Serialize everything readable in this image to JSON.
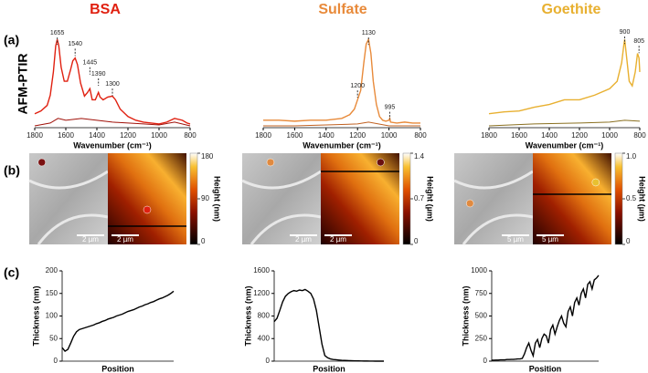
{
  "columns": [
    "BSA",
    "Sulfate",
    "Goethite"
  ],
  "column_colors": [
    "#e02010",
    "#e88a3a",
    "#e8b030"
  ],
  "panel_labels": [
    "(a)",
    "(b)",
    "(c)"
  ],
  "row_label": "AFM-PTIR",
  "images": [
    {
      "colorbar": {
        "label": "Height (nm)",
        "range": [
          0,
          180
        ],
        "ticks": [
          0,
          90,
          180
        ]
      },
      "scale_bars": [
        "2 µm",
        "2 µm"
      ]
    },
    {
      "colorbar": {
        "label": "Height (µm)",
        "range": [
          0,
          1.4
        ],
        "ticks": [
          0,
          0.7,
          1.4
        ]
      },
      "scale_bars": [
        "2 µm",
        "2 µm"
      ]
    },
    {
      "colorbar": {
        "label": "Height (µm)",
        "range": [
          0,
          1
        ],
        "ticks": [
          0,
          0.5,
          {
            "value": 1,
            "label": "1.0"
          }
        ]
      },
      "scale_bars": [
        "5 µm",
        "5 µm"
      ]
    }
  ],
  "chart_data": [
    {
      "type": "line",
      "xlabel": "Wavenumber (cm⁻¹)",
      "xlim": [
        1800,
        800
      ],
      "xticks": [
        1800,
        1600,
        1400,
        1200,
        1000,
        800
      ],
      "ylim": [
        0,
        1.1
      ],
      "series": [
        {
          "color": "#e02010",
          "x": [
            1800,
            1760,
            1720,
            1700,
            1680,
            1665,
            1655,
            1645,
            1630,
            1610,
            1590,
            1570,
            1555,
            1540,
            1525,
            1505,
            1480,
            1460,
            1445,
            1430,
            1410,
            1395,
            1390,
            1380,
            1360,
            1330,
            1300,
            1280,
            1250,
            1200,
            1150,
            1100,
            1050,
            1000,
            950,
            900,
            850,
            820,
            800
          ],
          "values": [
            0.15,
            0.18,
            0.24,
            0.35,
            0.6,
            0.88,
            0.95,
            0.88,
            0.65,
            0.5,
            0.5,
            0.62,
            0.72,
            0.75,
            0.68,
            0.48,
            0.34,
            0.38,
            0.42,
            0.3,
            0.3,
            0.36,
            0.38,
            0.33,
            0.3,
            0.33,
            0.34,
            0.3,
            0.2,
            0.12,
            0.08,
            0.06,
            0.05,
            0.04,
            0.06,
            0.1,
            0.08,
            0.05,
            0.04
          ]
        },
        {
          "color": "#a01008",
          "x": [
            1800,
            1700,
            1650,
            1600,
            1500,
            1400,
            1300,
            1200,
            1100,
            1000,
            900,
            800
          ],
          "values": [
            0.02,
            0.05,
            0.1,
            0.08,
            0.1,
            0.08,
            0.06,
            0.05,
            0.04,
            0.03,
            0.06,
            0.02
          ]
        }
      ],
      "annotations": [
        {
          "x": 1655,
          "y": 1.02,
          "label": "1655"
        },
        {
          "x": 1540,
          "y": 0.9,
          "label": "1540"
        },
        {
          "x": 1445,
          "y": 0.7,
          "label": "1445"
        },
        {
          "x": 1390,
          "y": 0.58,
          "label": "1390"
        },
        {
          "x": 1300,
          "y": 0.47,
          "label": "1300"
        }
      ]
    },
    {
      "type": "line",
      "xlabel": "Wavenumber (cm⁻¹)",
      "xlim": [
        1800,
        800
      ],
      "xticks": [
        1800,
        1600,
        1400,
        1200,
        1000,
        800
      ],
      "ylim": [
        0,
        1.1
      ],
      "series": [
        {
          "color": "#e88a3a",
          "x": [
            1800,
            1700,
            1600,
            1500,
            1400,
            1300,
            1250,
            1220,
            1200,
            1180,
            1160,
            1145,
            1130,
            1115,
            1100,
            1080,
            1060,
            1040,
            1020,
            1000,
            995,
            990,
            950,
            900,
            850,
            800
          ],
          "values": [
            0.08,
            0.08,
            0.07,
            0.08,
            0.08,
            0.1,
            0.14,
            0.2,
            0.3,
            0.4,
            0.7,
            0.9,
            0.95,
            0.8,
            0.5,
            0.25,
            0.12,
            0.08,
            0.07,
            0.08,
            0.1,
            0.06,
            0.05,
            0.06,
            0.05,
            0.05
          ]
        },
        {
          "color": "#c06020",
          "x": [
            1800,
            1600,
            1400,
            1200,
            1130,
            1000,
            800
          ],
          "values": [
            0.02,
            0.02,
            0.03,
            0.04,
            0.06,
            0.02,
            0.02
          ]
        }
      ],
      "annotations": [
        {
          "x": 1130,
          "y": 1.02,
          "label": "1130"
        },
        {
          "x": 1200,
          "y": 0.45,
          "label": "1200"
        },
        {
          "x": 995,
          "y": 0.22,
          "label": "995"
        }
      ]
    },
    {
      "type": "line",
      "xlabel": "Wavenumber (cm⁻¹)",
      "xlim": [
        1800,
        800
      ],
      "xticks": [
        1800,
        1600,
        1400,
        1200,
        1000,
        800
      ],
      "ylim": [
        0,
        1.1
      ],
      "series": [
        {
          "color": "#e8b030",
          "x": [
            1800,
            1700,
            1600,
            1500,
            1400,
            1300,
            1200,
            1100,
            1000,
            950,
            920,
            905,
            900,
            890,
            870,
            850,
            830,
            815,
            805,
            800
          ],
          "values": [
            0.15,
            0.17,
            0.18,
            0.22,
            0.25,
            0.3,
            0.3,
            0.35,
            0.42,
            0.5,
            0.7,
            0.9,
            0.95,
            0.8,
            0.5,
            0.45,
            0.6,
            0.8,
            0.75,
            0.6
          ]
        },
        {
          "color": "#8a7020",
          "x": [
            1800,
            1500,
            1200,
            1000,
            900,
            800
          ],
          "values": [
            0.02,
            0.04,
            0.05,
            0.06,
            0.08,
            0.07
          ]
        }
      ],
      "annotations": [
        {
          "x": 900,
          "y": 1.03,
          "label": "900"
        },
        {
          "x": 805,
          "y": 0.93,
          "label": "805"
        }
      ]
    },
    {
      "type": "line",
      "xlabel": "Position",
      "ylabel": "Thickness (nm)",
      "ylim": [
        0,
        200
      ],
      "yticks": [
        0,
        50,
        100,
        150,
        200
      ],
      "series": [
        {
          "color": "#000000",
          "values": [
            30,
            22,
            26,
            40,
            55,
            65,
            70,
            72,
            74,
            76,
            78,
            80,
            83,
            85,
            88,
            90,
            93,
            95,
            97,
            100,
            102,
            104,
            107,
            110,
            112,
            114,
            117,
            120,
            122,
            125,
            127,
            130,
            132,
            135,
            138,
            140,
            143,
            146,
            150,
            155
          ]
        }
      ]
    },
    {
      "type": "line",
      "xlabel": "Position",
      "ylabel": "Thickness (nm)",
      "ylim": [
        0,
        1600
      ],
      "yticks": [
        0,
        400,
        800,
        1200,
        1600
      ],
      "series": [
        {
          "color": "#000000",
          "values": [
            700,
            760,
            900,
            1050,
            1150,
            1200,
            1230,
            1250,
            1240,
            1260,
            1250,
            1270,
            1240,
            1200,
            1100,
            900,
            600,
            300,
            100,
            60,
            40,
            30,
            25,
            20,
            15,
            12,
            10,
            8,
            6,
            5,
            4,
            3,
            2,
            2,
            1,
            1,
            0,
            0,
            0,
            0
          ]
        }
      ]
    },
    {
      "type": "line",
      "xlabel": "Position",
      "ylabel": "Thickness (nm)",
      "ylim": [
        0,
        1000
      ],
      "yticks": [
        0,
        250,
        500,
        750,
        1000
      ],
      "series": [
        {
          "color": "#000000",
          "values": [
            10,
            10,
            12,
            12,
            15,
            15,
            15,
            18,
            18,
            20,
            20,
            22,
            25,
            25,
            30,
            80,
            150,
            200,
            120,
            60,
            200,
            240,
            150,
            250,
            300,
            280,
            200,
            350,
            400,
            300,
            380,
            450,
            500,
            420,
            380,
            550,
            600,
            500,
            650,
            700,
            620,
            750,
            800,
            700,
            850,
            880,
            800,
            900,
            920,
            950
          ]
        }
      ]
    }
  ]
}
